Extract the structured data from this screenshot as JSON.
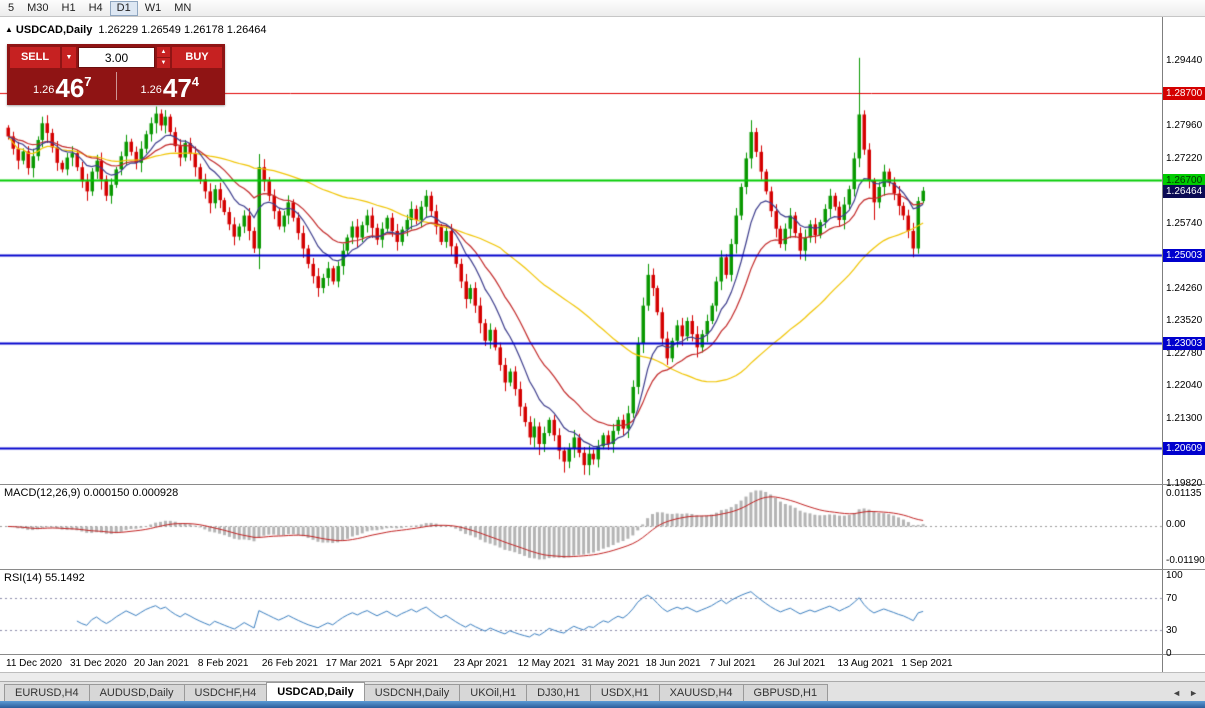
{
  "toolbar": {
    "timeframes": [
      "5",
      "M30",
      "H1",
      "H4",
      "D1",
      "W1",
      "MN"
    ],
    "active": "D1"
  },
  "chart": {
    "toggle_icon": "▲",
    "symbol_title": "USDCAD,Daily",
    "ohlc_text": "1.26229 1.26549 1.26178 1.26464",
    "open": "1.26229",
    "high": "1.26549",
    "low": "1.26178",
    "close": "1.26464",
    "up_color": "#089800",
    "down_color": "#d40000",
    "scale_ticks": [
      "1.29440",
      "1.27960",
      "1.27220",
      "1.25740",
      "1.24260",
      "1.23520",
      "1.22780",
      "1.22040",
      "1.21300",
      "1.19820"
    ],
    "hlines": [
      {
        "label": "1.28700",
        "price": 1.287,
        "color": "#e00000",
        "badge_bg": "#d40000",
        "text": "#ffffff",
        "width": 1
      },
      {
        "label": "1.26700",
        "price": 1.267,
        "color": "#00cc00",
        "badge_bg": "#00cc00",
        "text": "#003300",
        "width": 2
      },
      {
        "label": "1.25003",
        "price": 1.25003,
        "color": "#0000cd",
        "badge_bg": "#0000cd",
        "text": "#ffffff",
        "width": 2
      },
      {
        "label": "1.23003",
        "price": 1.23003,
        "color": "#0000cd",
        "badge_bg": "#0000cd",
        "text": "#ffffff",
        "width": 2
      },
      {
        "label": "1.20609",
        "price": 1.20609,
        "color": "#0000cd",
        "badge_bg": "#0000cd",
        "text": "#ffffff",
        "width": 2
      }
    ],
    "current_price": {
      "label": "1.26464",
      "price": 1.26464,
      "badge_bg": "#0b0b55",
      "text": "#ffffff"
    },
    "moving_averages": [
      {
        "kind": "sma",
        "period": 50,
        "color": "#f0c400"
      },
      {
        "kind": "ema",
        "period": 20,
        "color": "#c22828"
      },
      {
        "kind": "ema",
        "period": 10,
        "color": "#3c3c8c"
      }
    ],
    "candles": {
      "closes": [
        1.277,
        1.2742,
        1.2715,
        1.2736,
        1.2698,
        1.2725,
        1.2762,
        1.28,
        1.2778,
        1.2745,
        1.271,
        1.2695,
        1.2722,
        1.2732,
        1.27,
        1.2668,
        1.2645,
        1.269,
        1.2715,
        1.2672,
        1.2635,
        1.266,
        1.2695,
        1.2725,
        1.2758,
        1.2735,
        1.271,
        1.2742,
        1.2775,
        1.28,
        1.2822,
        1.2795,
        1.2815,
        1.278,
        1.2748,
        1.2722,
        1.2755,
        1.273,
        1.27,
        1.2672,
        1.2645,
        1.2618,
        1.265,
        1.2625,
        1.2598,
        1.257,
        1.2542,
        1.2565,
        1.259,
        1.2555,
        1.2515,
        1.27,
        1.2668,
        1.2635,
        1.26,
        1.2565,
        1.259,
        1.262,
        1.2585,
        1.255,
        1.2515,
        1.248,
        1.2452,
        1.2425,
        1.2448,
        1.247,
        1.244,
        1.2475,
        1.251,
        1.254,
        1.2565,
        1.254,
        1.2568,
        1.259,
        1.2562,
        1.2535,
        1.256,
        1.2585,
        1.2555,
        1.253,
        1.2558,
        1.258,
        1.2605,
        1.258,
        1.261,
        1.2635,
        1.26,
        1.2565,
        1.253,
        1.2555,
        1.252,
        1.248,
        1.244,
        1.24,
        1.2425,
        1.2385,
        1.2345,
        1.2305,
        1.233,
        1.229,
        1.225,
        1.221,
        1.2235,
        1.2195,
        1.2155,
        1.212,
        1.2085,
        1.211,
        1.207,
        1.2095,
        1.2125,
        1.209,
        1.2055,
        1.203,
        1.206,
        1.2085,
        1.205,
        1.2022,
        1.2048,
        1.2035,
        1.2065,
        1.209,
        1.207,
        1.21,
        1.2125,
        1.2105,
        1.214,
        1.22,
        1.23,
        1.2385,
        1.2455,
        1.2425,
        1.237,
        1.231,
        1.2265,
        1.2305,
        1.234,
        1.2315,
        1.235,
        1.232,
        1.229,
        1.232,
        1.235,
        1.2385,
        1.244,
        1.2495,
        1.2455,
        1.2525,
        1.259,
        1.2655,
        1.272,
        1.278,
        1.2735,
        1.269,
        1.2645,
        1.26,
        1.256,
        1.2525,
        1.256,
        1.259,
        1.255,
        1.251,
        1.254,
        1.257,
        1.2545,
        1.2575,
        1.2605,
        1.2635,
        1.261,
        1.258,
        1.2615,
        1.265,
        1.272,
        1.282,
        1.274,
        1.267,
        1.262,
        1.2655,
        1.269,
        1.2665,
        1.264,
        1.2612,
        1.259,
        1.2555,
        1.2515,
        1.26229,
        1.26464
      ],
      "overrides": [
        {
          "i": 0,
          "o": 1.279
        },
        {
          "i": 7,
          "h": 1.2815
        },
        {
          "i": 30,
          "h": 1.2838
        },
        {
          "i": 32,
          "h": 1.283
        },
        {
          "i": 51,
          "h": 1.273,
          "l": 1.2468
        },
        {
          "i": 63,
          "l": 1.2405
        },
        {
          "i": 85,
          "h": 1.2648
        },
        {
          "i": 108,
          "l": 1.2045
        },
        {
          "i": 113,
          "l": 1.2005
        },
        {
          "i": 117,
          "l": 1.2
        },
        {
          "i": 127,
          "h": 1.2215
        },
        {
          "i": 130,
          "h": 1.248
        },
        {
          "i": 134,
          "l": 1.225
        },
        {
          "i": 151,
          "h": 1.2807
        },
        {
          "i": 161,
          "l": 1.249
        },
        {
          "i": 173,
          "h": 1.2949,
          "l": 1.27
        },
        {
          "i": 176,
          "l": 1.258
        },
        {
          "i": 184,
          "l": 1.2495
        },
        {
          "i": 186,
          "o": 1.26229,
          "h": 1.26549,
          "l": 1.26178
        }
      ]
    },
    "date_labels": [
      "11 Dec 2020",
      "31 Dec 2020",
      "20 Jan 2021",
      "8 Feb 2021",
      "26 Feb 2021",
      "17 Mar 2021",
      "5 Apr 2021",
      "23 Apr 2021",
      "12 May 2021",
      "31 May 2021",
      "18 Jun 2021",
      "7 Jul 2021",
      "26 Jul 2021",
      "13 Aug 2021",
      "1 Sep 2021"
    ],
    "bars_per_label": 13
  },
  "trade_panel": {
    "sell_label": "SELL",
    "buy_label": "BUY",
    "volume": "3.00",
    "dropdown_icon": "▼",
    "spin_up_icon": "▲",
    "spin_down_icon": "▼",
    "bid": {
      "prefix": "1.26",
      "big": "46",
      "sup": "7"
    },
    "ask": {
      "prefix": "1.26",
      "big": "47",
      "sup": "4"
    }
  },
  "macd": {
    "label": "MACD(12,26,9) 0.000150 0.000928",
    "scale_labels": [
      "0.01135",
      "0.00",
      "-0.01190"
    ],
    "fast": 12,
    "slow": 26,
    "smooth": 9,
    "hist_color": "#b4b4b4",
    "line_color": "#c02020"
  },
  "rsi": {
    "label": "RSI(14) 55.1492",
    "period": 14,
    "scale_labels": [
      "100",
      "70",
      "30",
      "0"
    ],
    "levels": [
      70,
      30
    ],
    "line_color": "#3a7ebf"
  },
  "tabs": {
    "items": [
      "EURUSD,H4",
      "AUDUSD,Daily",
      "USDCHF,H4",
      "USDCAD,Daily",
      "USDCNH,Daily",
      "UKOil,H1",
      "DJ30,H1",
      "USDX,H1",
      "XAUUSD,H4",
      "GBPUSD,H1"
    ],
    "active": "USDCAD,Daily",
    "nav_left": "◄",
    "nav_right": "►"
  }
}
